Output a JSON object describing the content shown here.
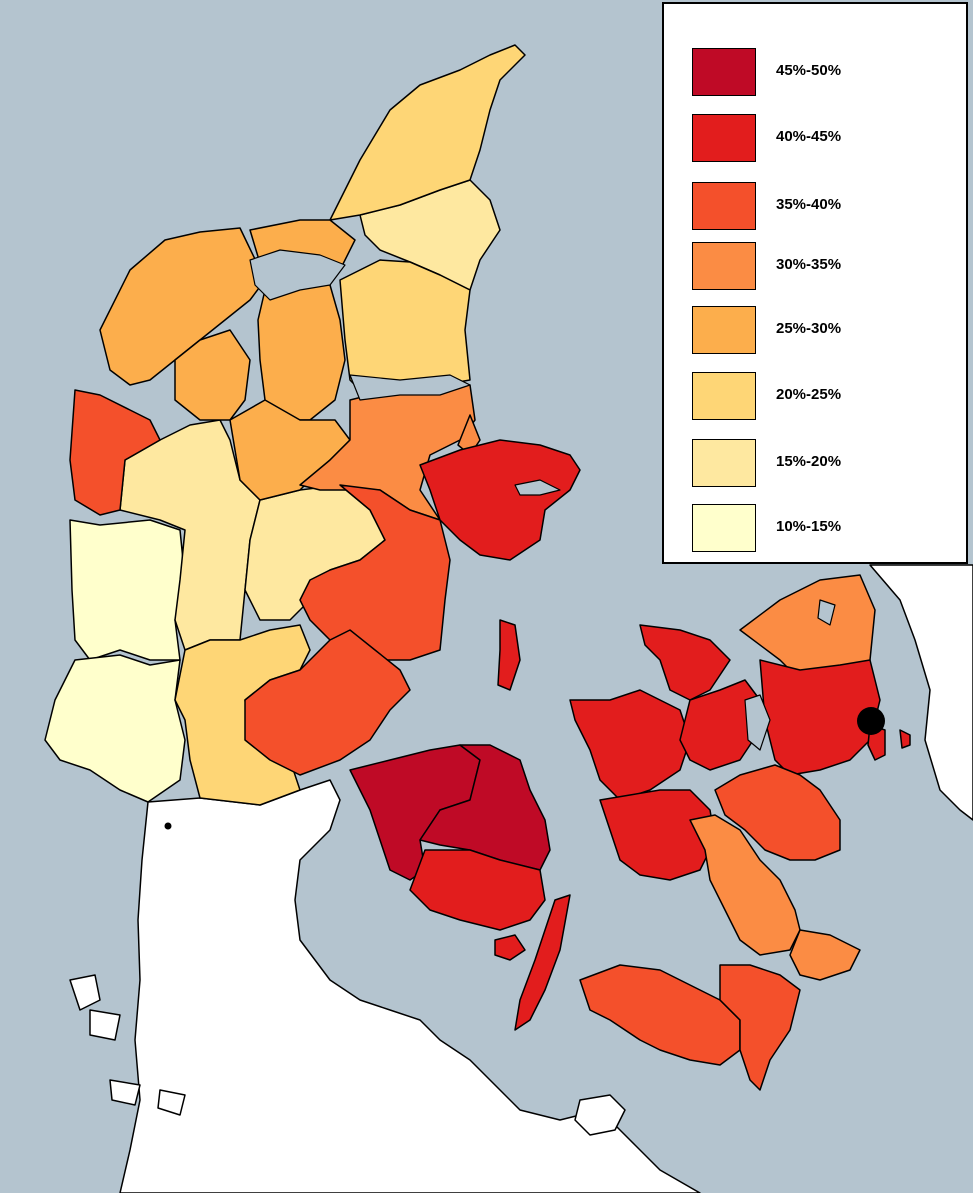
{
  "legend": {
    "items": [
      {
        "label": "45%-50%",
        "color": "#bf0a26"
      },
      {
        "label": "40%-45%",
        "color": "#e21d1d"
      },
      {
        "label": "35%-40%",
        "color": "#f4502b"
      },
      {
        "label": "30%-35%",
        "color": "#fb8c44"
      },
      {
        "label": "25%-30%",
        "color": "#fcae4c"
      },
      {
        "label": "20%-25%",
        "color": "#fed676"
      },
      {
        "label": "15%-20%",
        "color": "#fee8a0"
      },
      {
        "label": "10%-15%",
        "color": "#ffffcc"
      }
    ]
  },
  "colors": {
    "sea": "#b4c4cf",
    "foreign_land": "#ffffff",
    "border": "#000000",
    "city_marker": "#000000"
  }
}
